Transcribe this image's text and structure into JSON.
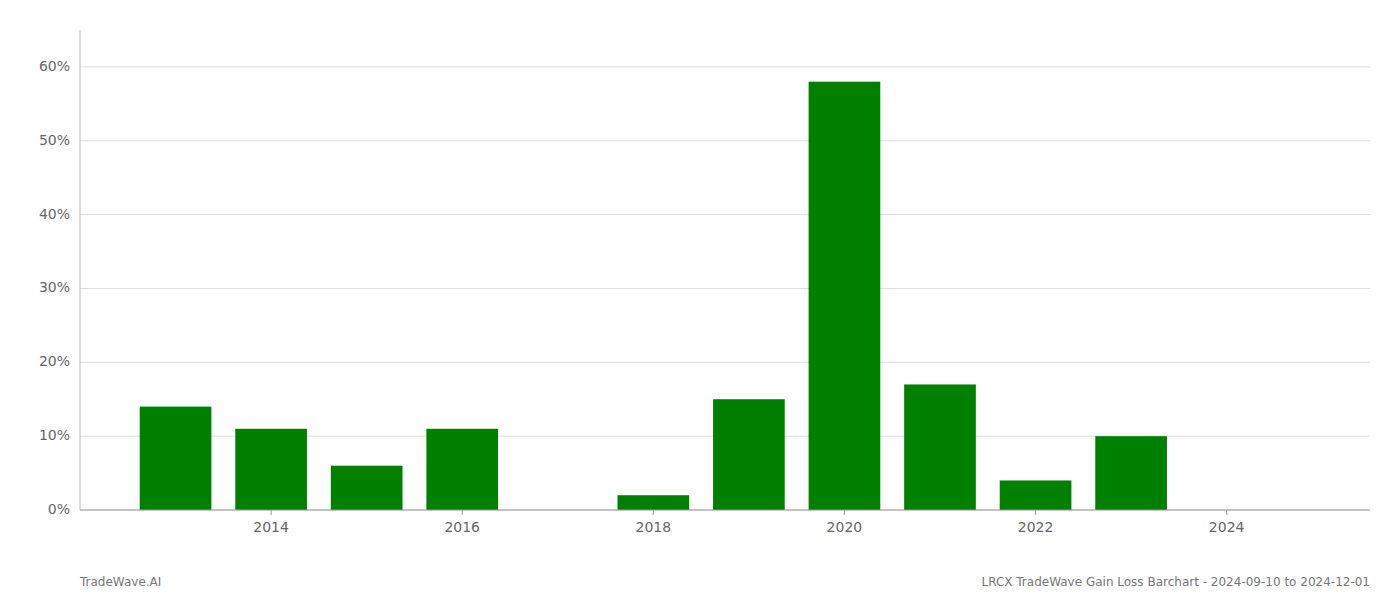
{
  "chart_data": {
    "type": "bar",
    "x": [
      2013,
      2014,
      2015,
      2016,
      2017,
      2018,
      2019,
      2020,
      2021,
      2022,
      2023,
      2024
    ],
    "values": [
      0.14,
      0.11,
      0.06,
      0.11,
      0.0,
      0.02,
      0.15,
      0.58,
      0.17,
      0.04,
      0.1,
      0.0
    ],
    "color": "#008000",
    "xlim": [
      2012.0,
      2025.5
    ],
    "xticks": [
      2014,
      2016,
      2018,
      2020,
      2022,
      2024
    ],
    "ylim": [
      0,
      0.65
    ],
    "yticks": [
      {
        "value": 0.0,
        "label": "0%"
      },
      {
        "value": 0.1,
        "label": "10%"
      },
      {
        "value": 0.2,
        "label": "20%"
      },
      {
        "value": 0.3,
        "label": "30%"
      },
      {
        "value": 0.4,
        "label": "40%"
      },
      {
        "value": 0.5,
        "label": "50%"
      },
      {
        "value": 0.6,
        "label": "60%"
      }
    ],
    "grid": true,
    "annotations": [
      "TradeWave.AI",
      "LRCX TradeWave Gain Loss Barchart - 2024-09-10 to 2024-12-01"
    ]
  }
}
